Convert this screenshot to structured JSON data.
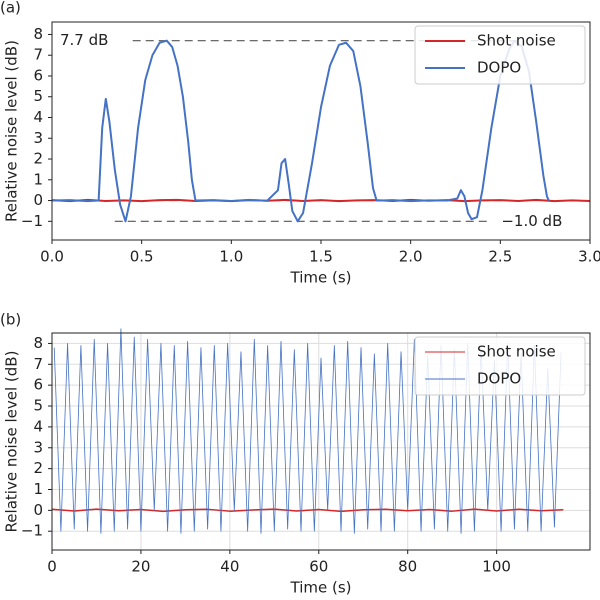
{
  "chart_data": [
    {
      "type": "line",
      "panel_label": "(a)",
      "xlabel": "Time (s)",
      "ylabel": "Relative noise level (dB)",
      "xlim": [
        0,
        3
      ],
      "ylim": [
        -1.9,
        8.6
      ],
      "grid": false,
      "legend": "upper right",
      "xticks": [
        {
          "value": 0,
          "label": "0.0"
        },
        0.5,
        {
          "value": 1,
          "label": "1.0"
        },
        1.5,
        {
          "value": 2,
          "label": "2.0"
        },
        2.5,
        {
          "value": 3,
          "label": "3.0"
        }
      ],
      "yticks": [
        {
          "value": -1,
          "label": "−1"
        },
        0,
        1,
        2,
        3,
        4,
        5,
        6,
        7,
        8
      ],
      "reference_lines": [
        {
          "value": 7.7,
          "label": "7.7 dB",
          "from": 0.45,
          "to": 2.6
        },
        {
          "value": 0,
          "from": 0,
          "to": 3
        },
        {
          "value": -1,
          "label": "−1.0 dB",
          "from": 0.35,
          "to": 2.45
        }
      ],
      "series": [
        {
          "name": "Shot noise",
          "color": "#d62728",
          "x": [
            0,
            0.1,
            0.2,
            0.3,
            0.4,
            0.5,
            0.6,
            0.7,
            0.8,
            0.9,
            1,
            1.1,
            1.2,
            1.3,
            1.4,
            1.5,
            1.6,
            1.7,
            1.8,
            1.9,
            2,
            2.1,
            2.2,
            2.3,
            2.4,
            2.5,
            2.6,
            2.7,
            2.8,
            2.9,
            3
          ],
          "values": [
            0.02,
            -0.03,
            0.03,
            -0.02,
            0.01,
            -0.03,
            0.02,
            0.03,
            -0.02,
            0.01,
            -0.03,
            0.02,
            -0.01,
            0.03,
            -0.02,
            0.02,
            -0.03,
            0.01,
            0.02,
            -0.02,
            0.03,
            -0.01,
            0.02,
            -0.03,
            0.01,
            0.02,
            -0.02,
            0.03,
            -0.03,
            0.01,
            -0.02
          ]
        },
        {
          "name": "DOPO",
          "color": "#4472c4",
          "x": [
            0,
            0.1,
            0.2,
            0.26,
            0.28,
            0.3,
            0.32,
            0.35,
            0.38,
            0.41,
            0.44,
            0.48,
            0.52,
            0.56,
            0.6,
            0.64,
            0.67,
            0.7,
            0.73,
            0.76,
            0.78,
            0.8,
            0.9,
            1.0,
            1.1,
            1.2,
            1.26,
            1.28,
            1.3,
            1.32,
            1.34,
            1.37,
            1.4,
            1.45,
            1.5,
            1.55,
            1.6,
            1.64,
            1.68,
            1.72,
            1.76,
            1.79,
            1.81,
            1.9,
            2.0,
            2.1,
            2.2,
            2.26,
            2.28,
            2.3,
            2.32,
            2.34,
            2.37,
            2.4,
            2.45,
            2.5,
            2.55,
            2.58,
            2.62,
            2.66,
            2.7,
            2.74,
            2.76,
            2.77
          ],
          "values": [
            0,
            0.02,
            -0.03,
            0,
            3.5,
            4.9,
            3.8,
            1.5,
            -0.2,
            -1.0,
            0.2,
            3.5,
            5.8,
            7.0,
            7.6,
            7.7,
            7.4,
            6.5,
            5.0,
            2.8,
            1.0,
            0,
            0.02,
            -0.02,
            0.03,
            -0.01,
            0.5,
            1.8,
            2.0,
            0.8,
            -0.5,
            -1.0,
            -0.6,
            1.8,
            4.5,
            6.5,
            7.5,
            7.6,
            7.2,
            5.5,
            2.8,
            0.6,
            0,
            0.02,
            -0.03,
            0.01,
            0,
            0.1,
            0.5,
            0.2,
            -0.6,
            -0.9,
            -0.8,
            0.5,
            3.5,
            6.0,
            7.3,
            7.7,
            7.4,
            6.2,
            3.8,
            1.2,
            0.2,
            0
          ]
        }
      ]
    },
    {
      "type": "line",
      "panel_label": "(b)",
      "xlabel": "Time (s)",
      "ylabel": "Relative noise level (dB)",
      "xlim": [
        0,
        121
      ],
      "ylim": [
        -1.9,
        8.5
      ],
      "grid": true,
      "legend": "upper right",
      "xticks": [
        0,
        20,
        40,
        60,
        80,
        100
      ],
      "yticks": [
        {
          "value": -1,
          "label": "−1"
        },
        0,
        1,
        2,
        3,
        4,
        5,
        6,
        7,
        8
      ],
      "series": [
        {
          "name": "Shot noise",
          "color": "#d62728",
          "x": [
            0,
            5,
            10,
            15,
            20,
            25,
            30,
            35,
            40,
            45,
            50,
            55,
            60,
            65,
            70,
            75,
            80,
            85,
            90,
            95,
            100,
            105,
            110,
            115
          ],
          "values": [
            0.05,
            -0.03,
            0.06,
            -0.02,
            0.04,
            -0.05,
            0.03,
            0.05,
            -0.04,
            0.02,
            0.06,
            -0.03,
            0.04,
            -0.05,
            0.03,
            0.05,
            -0.02,
            0.04,
            -0.04,
            0.06,
            -0.03,
            0.05,
            -0.02,
            0.03
          ]
        },
        {
          "name": "DOPO",
          "color": "#4472c4",
          "x": [
            0.5,
            2,
            3.5,
            5,
            6.5,
            8,
            9.5,
            11,
            12.5,
            14,
            15.5,
            17,
            18.5,
            20,
            21.5,
            23,
            24.5,
            26,
            27.5,
            29,
            30.5,
            32,
            33.5,
            35,
            36.5,
            38,
            39.5,
            41,
            42.5,
            44,
            45.5,
            47,
            48.5,
            50,
            51.5,
            53,
            54.5,
            56,
            57.5,
            59,
            60.5,
            62,
            63.5,
            65,
            66.5,
            68,
            69.5,
            71,
            72.5,
            74,
            75.5,
            77,
            78.5,
            80,
            81.5,
            83,
            84.5,
            86,
            87.5,
            89,
            90.5,
            92,
            93.5,
            95,
            96.5,
            98,
            99.5,
            101,
            102.5,
            104,
            105.5,
            107,
            108.5,
            110,
            111.5,
            113,
            114.5
          ],
          "values": [
            7.8,
            -1.0,
            8.0,
            -0.9,
            7.9,
            -1.0,
            8.2,
            -1.1,
            8.0,
            -1.0,
            8.7,
            -0.9,
            8.3,
            -1.0,
            8.2,
            0,
            8.0,
            -1.0,
            7.9,
            -1.1,
            8.1,
            -1.0,
            7.8,
            -0.9,
            7.9,
            -1.0,
            8.0,
            0,
            7.6,
            -1.0,
            8.2,
            -1.1,
            7.9,
            -1.0,
            8.1,
            -0.9,
            7.7,
            -1.0,
            8.0,
            -1.0,
            7.3,
            0,
            7.9,
            -1.0,
            8.1,
            -1.1,
            7.8,
            -0.9,
            7.5,
            -1.0,
            8.0,
            -1.0,
            7.6,
            0,
            8.2,
            -1.0,
            7.4,
            -0.9,
            7.9,
            -1.0,
            7.7,
            -1.1,
            8.0,
            -1.0,
            7.8,
            0,
            7.2,
            -1.0,
            8.0,
            -0.9,
            7.5,
            -1.0,
            7.9,
            -1.0,
            6.8,
            -0.8,
            7.6
          ]
        }
      ]
    }
  ]
}
